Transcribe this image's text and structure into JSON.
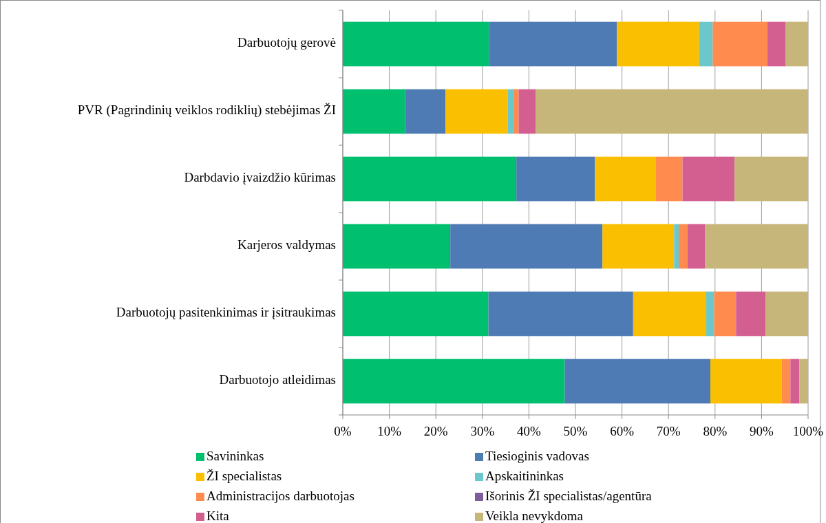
{
  "chart_data": {
    "type": "bar",
    "orientation": "horizontal",
    "stacked": true,
    "categories": [
      "Darbuotojų gerovė",
      "PVR (Pagrindinių veiklos rodiklių) stebėjimas ŽI",
      "Darbdavio įvaizdžio kūrimas",
      "Karjeros valdymas",
      "Darbuotojų pasitenkinimas ir įsitraukimas",
      "Darbuotojo atleidimas"
    ],
    "series": [
      {
        "name": "Savininkas",
        "color": "#00bf6f",
        "values": [
          31.4,
          13.4,
          37.3,
          23.1,
          31.3,
          47.7
        ]
      },
      {
        "name": "Tiesioginis vadovas",
        "color": "#4f7bb4",
        "values": [
          27.5,
          8.7,
          16.9,
          32.7,
          31.1,
          31.3
        ]
      },
      {
        "name": "ŽI specialistas",
        "color": "#f9bf00",
        "values": [
          17.7,
          13.3,
          13.1,
          15.4,
          15.7,
          15.3
        ]
      },
      {
        "name": "Apskaitininkas",
        "color": "#6bc7cb",
        "values": [
          2.9,
          1.3,
          0,
          1.0,
          1.7,
          0
        ]
      },
      {
        "name": "Administracijos darbuotojas",
        "color": "#ff8b4f",
        "values": [
          11.7,
          1.1,
          5.7,
          1.9,
          4.7,
          1.9
        ]
      },
      {
        "name": "Išorinis ŽI specialistas/agentūra",
        "color": "#7b5e9a",
        "values": [
          0,
          0,
          0,
          0,
          0,
          0
        ]
      },
      {
        "name": "Kita",
        "color": "#d35f91",
        "values": [
          4.0,
          3.7,
          11.2,
          3.8,
          6.4,
          1.9
        ]
      },
      {
        "name": "Veikla nevykdoma",
        "color": "#c7b67a",
        "values": [
          4.8,
          58.5,
          15.8,
          22.1,
          9.1,
          1.9
        ]
      }
    ],
    "xlim": [
      0,
      100
    ],
    "xticks": [
      {
        "value": 0,
        "label": "0%"
      },
      {
        "value": 10,
        "label": "10%"
      },
      {
        "value": 20,
        "label": "20%"
      },
      {
        "value": 30,
        "label": "30%"
      },
      {
        "value": 40,
        "label": "40%"
      },
      {
        "value": 50,
        "label": "50%"
      },
      {
        "value": 60,
        "label": "60%"
      },
      {
        "value": 70,
        "label": "70%"
      },
      {
        "value": 80,
        "label": "80%"
      },
      {
        "value": 90,
        "label": "90%"
      },
      {
        "value": 100,
        "label": "100%"
      }
    ],
    "grid": "x",
    "legend": "bottom"
  }
}
